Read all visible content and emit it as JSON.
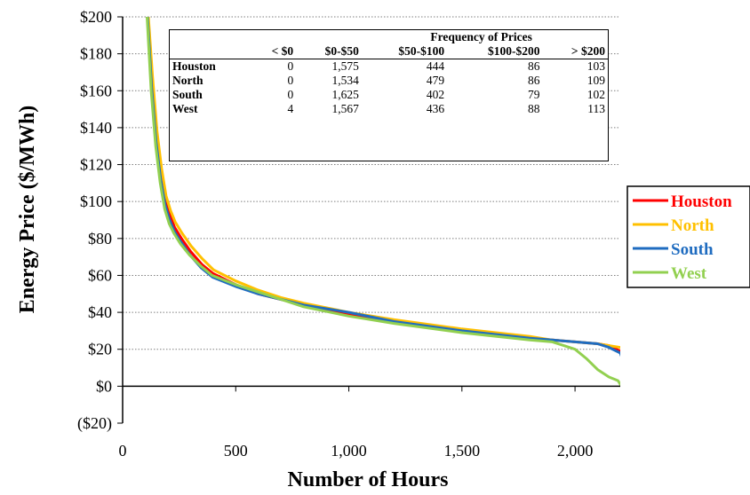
{
  "chart_data": {
    "type": "line",
    "title": "",
    "xlabel": "Number of Hours",
    "ylabel": "Energy Price ($/MWh)",
    "xlim": [
      0,
      2200
    ],
    "ylim": [
      -20,
      200
    ],
    "x_ticks": [
      {
        "value": 0,
        "label": "0"
      },
      {
        "value": 500,
        "label": "500"
      },
      {
        "value": 1000,
        "label": "1,000"
      },
      {
        "value": 1500,
        "label": "1,500"
      },
      {
        "value": 2000,
        "label": "2,000"
      }
    ],
    "y_ticks": [
      {
        "value": 200,
        "label": "$200"
      },
      {
        "value": 180,
        "label": "$180"
      },
      {
        "value": 160,
        "label": "$160"
      },
      {
        "value": 140,
        "label": "$140"
      },
      {
        "value": 120,
        "label": "$120"
      },
      {
        "value": 100,
        "label": "$100"
      },
      {
        "value": 80,
        "label": "$80"
      },
      {
        "value": 60,
        "label": "$60"
      },
      {
        "value": 40,
        "label": "$40"
      },
      {
        "value": 20,
        "label": "$20"
      },
      {
        "value": 0,
        "label": "$0"
      },
      {
        "value": -20,
        "label": "($20)",
        "color": "#e31b1b"
      }
    ],
    "grid": "horizontal-dotted",
    "legend": "right",
    "series": [
      {
        "name": "Houston",
        "color": "#ff0000",
        "x": [
          112,
          130,
          150,
          170,
          190,
          210,
          230,
          260,
          300,
          350,
          400,
          500,
          600,
          700,
          800,
          1000,
          1200,
          1500,
          1800,
          1900,
          2000,
          2100,
          2150,
          2200,
          2215
        ],
        "y": [
          200,
          165,
          135,
          115,
          100,
          92,
          86,
          80,
          73,
          66,
          61,
          55,
          50,
          47,
          44,
          39,
          35,
          30,
          26,
          25,
          24,
          23,
          22,
          19,
          16
        ]
      },
      {
        "name": "North",
        "color": "#ffc000",
        "x": [
          114,
          132,
          152,
          172,
          192,
          212,
          232,
          262,
          302,
          352,
          402,
          500,
          600,
          700,
          800,
          1000,
          1200,
          1500,
          1800,
          1900,
          2000,
          2100,
          2150,
          2200,
          2215
        ],
        "y": [
          200,
          168,
          138,
          118,
          103,
          95,
          89,
          83,
          76,
          69,
          63,
          57,
          52,
          48,
          45,
          40,
          36,
          31,
          27,
          25,
          24,
          23,
          22,
          21,
          19
        ]
      },
      {
        "name": "South",
        "color": "#1f6cc0",
        "x": [
          110,
          128,
          148,
          168,
          188,
          208,
          228,
          258,
          298,
          348,
          398,
          500,
          600,
          700,
          800,
          1000,
          1200,
          1500,
          1800,
          1900,
          2000,
          2100,
          2150,
          2200,
          2215
        ],
        "y": [
          200,
          162,
          132,
          112,
          98,
          90,
          84,
          78,
          71,
          64,
          59,
          54,
          50,
          47,
          44,
          40,
          35,
          30,
          26,
          25,
          24,
          23,
          21,
          18,
          13
        ]
      },
      {
        "name": "West",
        "color": "#92d050",
        "x": [
          108,
          126,
          146,
          166,
          186,
          206,
          226,
          256,
          296,
          346,
          396,
          500,
          600,
          700,
          800,
          1000,
          1200,
          1500,
          1800,
          1900,
          2000,
          2050,
          2100,
          2150,
          2190,
          2205,
          2212
        ],
        "y": [
          200,
          160,
          130,
          110,
          96,
          88,
          83,
          77,
          71,
          65,
          60,
          55,
          51,
          47,
          43,
          38,
          34,
          29,
          25,
          24,
          20,
          15,
          9,
          5,
          3,
          0,
          -7
        ]
      }
    ]
  },
  "frequency_table": {
    "title": "Frequency of Prices",
    "columns": [
      "< $0",
      "$0-$50",
      "$50-$100",
      "$100-$200",
      "> $200"
    ],
    "rows": [
      {
        "label": "Houston",
        "values": [
          "0",
          "1,575",
          "444",
          "86",
          "103"
        ]
      },
      {
        "label": "North",
        "values": [
          "0",
          "1,534",
          "479",
          "86",
          "109"
        ]
      },
      {
        "label": "South",
        "values": [
          "0",
          "1,625",
          "402",
          "79",
          "102"
        ]
      },
      {
        "label": "West",
        "values": [
          "4",
          "1,567",
          "436",
          "88",
          "113"
        ]
      }
    ]
  }
}
